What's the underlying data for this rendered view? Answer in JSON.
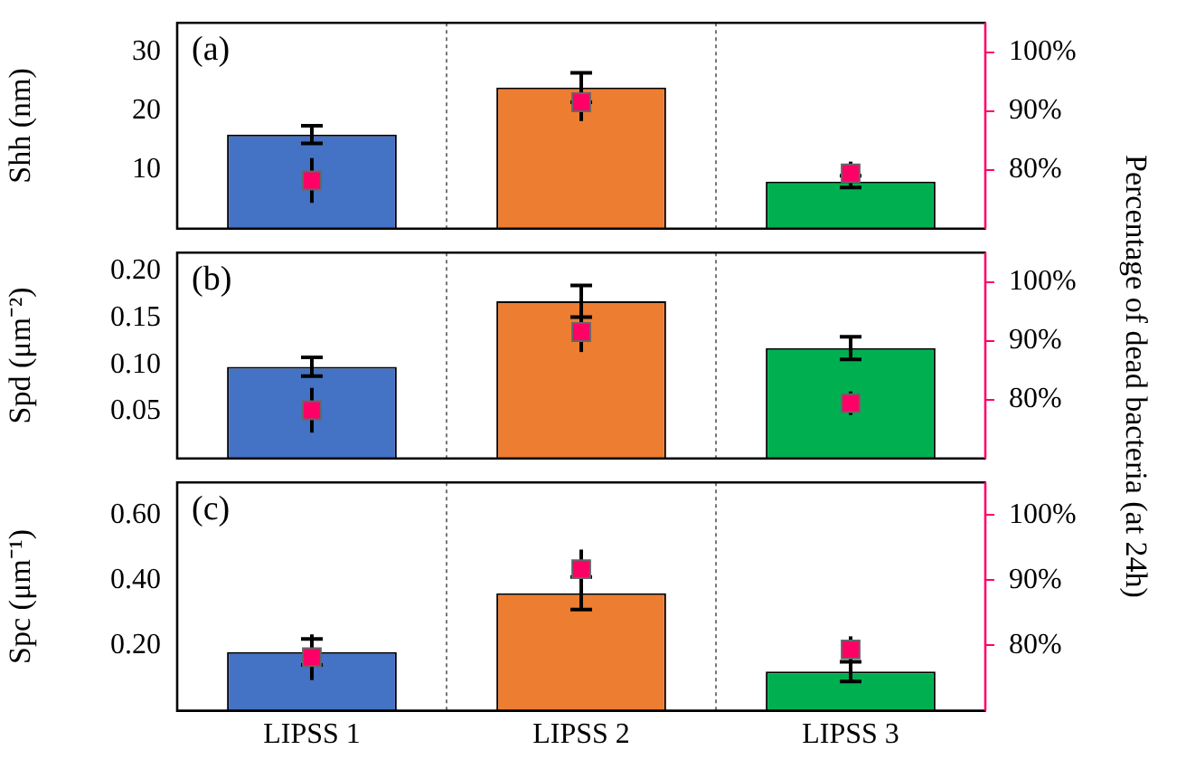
{
  "chart_data": [
    {
      "type": "bar",
      "categories": [
        "LIPSS 1",
        "LIPSS 2",
        "LIPSS 3"
      ],
      "ylabel": "Shh (nm)",
      "annotations": [
        "(a)"
      ],
      "ylim": [
        0,
        35
      ],
      "yticks": [
        10,
        20,
        30
      ],
      "y2lim": [
        70,
        105
      ],
      "y2ticks": [
        {
          "value": 80,
          "label": "80%"
        },
        {
          "value": 90,
          "label": "90%"
        },
        {
          "value": 100,
          "label": "100%"
        }
      ],
      "grid": "x",
      "legend": false,
      "tick_labels": "y",
      "series": [
        {
          "colors": [
            "#4472c4",
            "#ed7d31",
            "#00b050"
          ],
          "values": [
            16,
            24,
            8
          ],
          "errors": [
            1.5,
            2.5,
            1
          ]
        },
        {
          "type": "scatter",
          "axis": "y2",
          "marker": "square",
          "color": "#ff0066",
          "x": [
            "LIPSS 1",
            "LIPSS 2",
            "LIPSS 3"
          ],
          "values": [
            78.2,
            91.5,
            79.4
          ],
          "errors": [
            3.8,
            3.2,
            2
          ]
        }
      ]
    },
    {
      "type": "bar",
      "categories": [
        "LIPSS 1",
        "LIPSS 2",
        "LIPSS 3"
      ],
      "ylabel": "Spd (μm⁻²)",
      "y2label": "Percentage of dead bacteria (at 24h)",
      "annotations": [
        "(b)"
      ],
      "ylim": [
        0,
        0.22
      ],
      "yticks": [
        {
          "value": 0.05,
          "label": "0.05"
        },
        {
          "value": 0.1,
          "label": "0.10"
        },
        {
          "value": 0.15,
          "label": "0.15"
        },
        {
          "value": 0.2,
          "label": "0.20"
        }
      ],
      "y2lim": [
        70,
        105
      ],
      "y2ticks": [
        {
          "value": 80,
          "label": "80%"
        },
        {
          "value": 90,
          "label": "90%"
        },
        {
          "value": 100,
          "label": "100%"
        }
      ],
      "grid": "x",
      "legend": false,
      "tick_labels": "y",
      "series": [
        {
          "colors": [
            "#4472c4",
            "#ed7d31",
            "#00b050"
          ],
          "values": [
            0.098,
            0.168,
            0.118
          ],
          "errors": [
            0.01,
            0.017,
            0.012
          ]
        },
        {
          "type": "scatter",
          "axis": "y2",
          "marker": "square",
          "color": "#ff0066",
          "x": [
            "LIPSS 1",
            "LIPSS 2",
            "LIPSS 3"
          ],
          "values": [
            78.2,
            91.5,
            79.4
          ],
          "errors": [
            3.8,
            3.4,
            2
          ]
        }
      ]
    },
    {
      "type": "bar",
      "categories": [
        "LIPSS 1",
        "LIPSS 2",
        "LIPSS 3"
      ],
      "ylabel": "Spc (μm⁻¹)",
      "annotations": [
        "(c)"
      ],
      "ylim": [
        0,
        0.7
      ],
      "yticks": [
        {
          "value": 0.2,
          "label": "0.20"
        },
        {
          "value": 0.4,
          "label": "0.40"
        },
        {
          "value": 0.6,
          "label": "0.60"
        }
      ],
      "y2lim": [
        70,
        105
      ],
      "y2ticks": [
        {
          "value": 80,
          "label": "80%"
        },
        {
          "value": 90,
          "label": "90%"
        },
        {
          "value": 100,
          "label": "100%"
        }
      ],
      "grid": "x",
      "legend": false,
      "series": [
        {
          "colors": [
            "#4472c4",
            "#ed7d31",
            "#00b050"
          ],
          "values": [
            0.18,
            0.36,
            0.12
          ],
          "errors": [
            0.04,
            0.05,
            0.03
          ]
        },
        {
          "type": "scatter",
          "axis": "y2",
          "marker": "square",
          "color": "#ff0066",
          "x": [
            "LIPSS 1",
            "LIPSS 2",
            "LIPSS 3"
          ],
          "values": [
            78.2,
            91.7,
            79.4
          ],
          "errors": [
            3.5,
            3,
            2
          ]
        }
      ]
    }
  ]
}
